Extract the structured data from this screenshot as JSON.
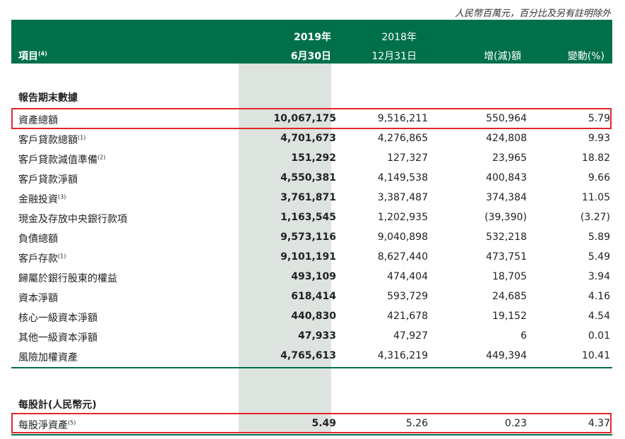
{
  "note": "人民幣百萬元，百分比及另有註明除外",
  "header": {
    "item_label": "項目",
    "item_sup": "(4)",
    "col1_year": "2019年",
    "col1_date": "6月30日",
    "col2_year": "2018年",
    "col2_date": "12月31日",
    "col3": "增(減)額",
    "col4": "變動(%)"
  },
  "section1_title": "報告期末數據",
  "rows": [
    {
      "label": "資產總額",
      "sup": "",
      "v1": "10,067,175",
      "v2": "9,516,211",
      "v3": "550,964",
      "v4": "5.79"
    },
    {
      "label": "客戶貸款總額",
      "sup": "(1)",
      "v1": "4,701,673",
      "v2": "4,276,865",
      "v3": "424,808",
      "v4": "9.93"
    },
    {
      "label": "客戶貸款減值準備",
      "sup": "(2)",
      "v1": "151,292",
      "v2": "127,327",
      "v3": "23,965",
      "v4": "18.82"
    },
    {
      "label": "客戶貸款淨額",
      "sup": "",
      "v1": "4,550,381",
      "v2": "4,149,538",
      "v3": "400,843",
      "v4": "9.66"
    },
    {
      "label": "金融投資",
      "sup": "(3)",
      "v1": "3,761,871",
      "v2": "3,387,487",
      "v3": "374,384",
      "v4": "11.05"
    },
    {
      "label": "現金及存放中央銀行款項",
      "sup": "",
      "v1": "1,163,545",
      "v2": "1,202,935",
      "v3": "(39,390)",
      "v4": "(3.27)"
    },
    {
      "label": "負債總額",
      "sup": "",
      "v1": "9,573,116",
      "v2": "9,040,898",
      "v3": "532,218",
      "v4": "5.89"
    },
    {
      "label": "客戶存款",
      "sup": "(1)",
      "v1": "9,101,191",
      "v2": "8,627,440",
      "v3": "473,751",
      "v4": "5.49"
    },
    {
      "label": "歸屬於銀行股東的權益",
      "sup": "",
      "v1": "493,109",
      "v2": "474,404",
      "v3": "18,705",
      "v4": "3.94"
    },
    {
      "label": "資本淨額",
      "sup": "",
      "v1": "618,414",
      "v2": "593,729",
      "v3": "24,685",
      "v4": "4.16"
    },
    {
      "label": "核心一級資本淨額",
      "sup": "",
      "v1": "440,830",
      "v2": "421,678",
      "v3": "19,152",
      "v4": "4.54"
    },
    {
      "label": "其他一級資本淨額",
      "sup": "",
      "v1": "47,933",
      "v2": "47,927",
      "v3": "6",
      "v4": "0.01"
    },
    {
      "label": "風險加權資產",
      "sup": "",
      "v1": "4,765,613",
      "v2": "4,316,219",
      "v3": "449,394",
      "v4": "10.41"
    }
  ],
  "section2_title": "每股計(人民幣元)",
  "row2": {
    "label": "每股淨資產",
    "sup": "(5)",
    "v1": "5.49",
    "v2": "5.26",
    "v3": "0.23",
    "v4": "4.37"
  }
}
